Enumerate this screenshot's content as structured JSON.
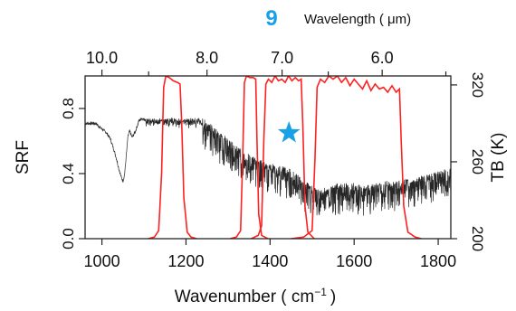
{
  "chart_data": {
    "type": "line",
    "panel_label": "9",
    "xlabel": "Wavenumber ( cm",
    "xlabel_sup": "−1",
    "xlabel_close": ")",
    "top_axis_label": "Wavelength ( μm)",
    "ylabel_left": "SRF",
    "ylabel_right": "TB (K)",
    "xlim": [
      960,
      1830
    ],
    "ylim_left": [
      0.0,
      1.0
    ],
    "ylim_right": [
      200,
      327
    ],
    "x_ticks": [
      {
        "v": 1000,
        "label": "1000"
      },
      {
        "v": 1200,
        "label": "1200"
      },
      {
        "v": 1400,
        "label": "1400"
      },
      {
        "v": 1600,
        "label": "1600"
      },
      {
        "v": 1800,
        "label": "1800"
      }
    ],
    "y_left_ticks": [
      {
        "v": 0.0,
        "label": "0.0"
      },
      {
        "v": 0.4,
        "label": "0.4"
      },
      {
        "v": 0.8,
        "label": "0.8"
      }
    ],
    "y_right_ticks": [
      {
        "v": 200,
        "label": "200"
      },
      {
        "v": 260,
        "label": "260"
      },
      {
        "v": 320,
        "label": "320"
      }
    ],
    "top_ticks": [
      {
        "um": 10.0,
        "label": "10.0"
      },
      {
        "um": 8.0,
        "label": "8.0"
      },
      {
        "um": 7.0,
        "label": "7.0"
      },
      {
        "um": 6.0,
        "label": "6.0"
      }
    ],
    "top_minor_ticks_um": [
      9.0,
      6.5,
      5.5
    ],
    "star": {
      "x": 1445,
      "srf": 0.65
    },
    "series": [
      {
        "role": "srf_bands",
        "color": "#ff2020",
        "bands": [
          {
            "points": [
              [
                1110,
                0
              ],
              [
                1125,
                0.01
              ],
              [
                1135,
                0.05
              ],
              [
                1142,
                0.4
              ],
              [
                1147,
                0.93
              ],
              [
                1152,
                1.0
              ],
              [
                1160,
                0.99
              ],
              [
                1170,
                0.97
              ],
              [
                1180,
                0.96
              ],
              [
                1186,
                0.95
              ],
              [
                1190,
                0.7
              ],
              [
                1195,
                0.25
              ],
              [
                1203,
                0.04
              ],
              [
                1212,
                0.01
              ],
              [
                1225,
                0
              ]
            ]
          },
          {
            "points": [
              [
                1305,
                0
              ],
              [
                1320,
                0.01
              ],
              [
                1330,
                0.05
              ],
              [
                1335,
                0.5
              ],
              [
                1339,
                0.96
              ],
              [
                1344,
                1.0
              ],
              [
                1352,
                0.99
              ],
              [
                1360,
                0.99
              ],
              [
                1366,
                0.98
              ],
              [
                1369,
                0.6
              ],
              [
                1373,
                0.15
              ],
              [
                1380,
                0.02
              ],
              [
                1395,
                0
              ]
            ]
          },
          {
            "points": [
              [
                1355,
                0
              ],
              [
                1372,
                0.02
              ],
              [
                1380,
                0.08
              ],
              [
                1385,
                0.6
              ],
              [
                1390,
                0.95
              ],
              [
                1396,
                0.98
              ],
              [
                1404,
                0.96
              ],
              [
                1412,
                1.0
              ],
              [
                1420,
                0.97
              ],
              [
                1428,
                0.98
              ],
              [
                1436,
                0.96
              ],
              [
                1444,
                1.0
              ],
              [
                1452,
                0.97
              ],
              [
                1460,
                0.99
              ],
              [
                1468,
                0.97
              ],
              [
                1474,
                0.98
              ],
              [
                1478,
                0.7
              ],
              [
                1483,
                0.2
              ],
              [
                1490,
                0.04
              ],
              [
                1505,
                0
              ]
            ]
          },
          {
            "points": [
              [
                1450,
                0
              ],
              [
                1480,
                0.01
              ],
              [
                1500,
                0.05
              ],
              [
                1507,
                0.5
              ],
              [
                1512,
                0.93
              ],
              [
                1520,
                0.98
              ],
              [
                1530,
                0.96
              ],
              [
                1540,
                1.0
              ],
              [
                1550,
                0.98
              ],
              [
                1560,
                1.0
              ],
              [
                1570,
                0.96
              ],
              [
                1580,
                0.99
              ],
              [
                1590,
                0.94
              ],
              [
                1600,
                0.98
              ],
              [
                1610,
                0.95
              ],
              [
                1620,
                0.92
              ],
              [
                1630,
                0.97
              ],
              [
                1640,
                0.91
              ],
              [
                1650,
                0.95
              ],
              [
                1660,
                0.92
              ],
              [
                1670,
                0.93
              ],
              [
                1680,
                0.9
              ],
              [
                1690,
                0.94
              ],
              [
                1700,
                0.9
              ],
              [
                1708,
                0.92
              ],
              [
                1712,
                0.6
              ],
              [
                1718,
                0.2
              ],
              [
                1728,
                0.04
              ],
              [
                1745,
                0.01
              ],
              [
                1760,
                0
              ]
            ]
          }
        ]
      },
      {
        "role": "brightness_temperature",
        "color": "#000000",
        "anchors": [
          [
            960,
            290
          ],
          [
            985,
            290
          ],
          [
            995,
            287
          ],
          [
            1010,
            283
          ],
          [
            1020,
            278
          ],
          [
            1028,
            270
          ],
          [
            1035,
            262
          ],
          [
            1040,
            255
          ],
          [
            1046,
            248
          ],
          [
            1050,
            245
          ],
          [
            1054,
            250
          ],
          [
            1058,
            265
          ],
          [
            1062,
            280
          ],
          [
            1066,
            284
          ],
          [
            1072,
            279
          ],
          [
            1080,
            284
          ],
          [
            1088,
            292
          ],
          [
            1095,
            294
          ],
          [
            1100,
            293
          ],
          [
            1200,
            293
          ],
          [
            1240,
            293
          ],
          [
            1260,
            288
          ],
          [
            1280,
            282
          ],
          [
            1300,
            277
          ],
          [
            1320,
            272
          ],
          [
            1340,
            267
          ],
          [
            1360,
            263
          ],
          [
            1380,
            260
          ],
          [
            1400,
            258
          ],
          [
            1420,
            256
          ],
          [
            1440,
            255
          ],
          [
            1460,
            251
          ],
          [
            1480,
            245
          ],
          [
            1500,
            240
          ],
          [
            1520,
            238
          ],
          [
            1540,
            239
          ],
          [
            1560,
            242
          ],
          [
            1580,
            243
          ],
          [
            1600,
            242
          ],
          [
            1620,
            240
          ],
          [
            1640,
            241
          ],
          [
            1660,
            243
          ],
          [
            1680,
            244
          ],
          [
            1700,
            244
          ],
          [
            1720,
            245
          ],
          [
            1740,
            246
          ],
          [
            1760,
            248
          ],
          [
            1780,
            250
          ],
          [
            1800,
            252
          ],
          [
            1830,
            254
          ]
        ],
        "fine_structure_start": 1105,
        "fine_structure_amplitude": 16
      }
    ]
  }
}
